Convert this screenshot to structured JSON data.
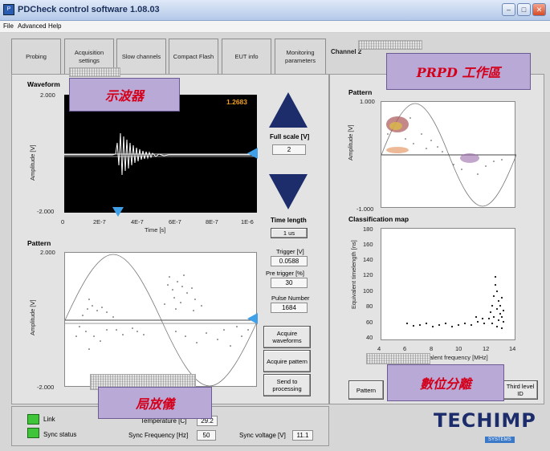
{
  "window": {
    "title": "PDCheck control software 1.08.03"
  },
  "menu": [
    "File",
    "Advanced",
    "Help"
  ],
  "tabs": [
    "Probing",
    "Acquisition settings",
    "Slow channels",
    "Compact Flash",
    "EUT info",
    "Monitoring parameters",
    "Channel 2"
  ],
  "waveform": {
    "title": "Waveform",
    "value_readout": "1.2683",
    "y_axis": {
      "label": "Amplitude [V]",
      "top": "2.000",
      "bottom": "-2.000"
    },
    "x_axis": {
      "label": "Time [s]",
      "ticks": [
        "0",
        "2E-7",
        "4E-7",
        "6E-7",
        "8E-7",
        "1E-6"
      ]
    }
  },
  "pattern": {
    "title": "Pattern",
    "y_axis": {
      "label": "Amplitude [V]",
      "top": "2.000",
      "bottom": "-2.000"
    }
  },
  "controls": {
    "full_scale_label": "Full scale [V]",
    "full_scale_value": "2",
    "time_length_label": "Time length",
    "time_length_value": "1 us",
    "trigger_label": "Trigger [V]",
    "trigger_value": "0.0588",
    "pretrigger_label": "Pre trigger [%]",
    "pretrigger_value": "30",
    "pulse_number_label": "Pulse Number",
    "pulse_number_value": "1684",
    "acquire_waveforms": "Acquire waveforms",
    "acquire_pattern": "Acquire pattern",
    "send_to_processing": "Send to processing"
  },
  "prpd": {
    "title": "Pattern",
    "y_axis": {
      "label": "Amplitude [V]",
      "top": "1.000",
      "bottom": "-1.000"
    }
  },
  "classification": {
    "title": "Classification map",
    "y_axis": {
      "label": "Equivalent timelength [ns]",
      "ticks": [
        "180",
        "160",
        "140",
        "120",
        "100",
        "80",
        "60",
        "40"
      ]
    },
    "x_axis": {
      "label": "Equivalent frequency [MHz]",
      "ticks": [
        "4",
        "6",
        "8",
        "10",
        "12",
        "14"
      ]
    }
  },
  "right_buttons": {
    "pattern": "Pattern",
    "third": "Third level ID"
  },
  "status": {
    "link": "Link",
    "sync_status": "Sync status",
    "temperature_label": "Temperature [C]",
    "temperature_value": "29.2",
    "sync_freq_label": "Sync Frequency [Hz]",
    "sync_freq_value": "50",
    "sync_voltage_label": "Sync voltage [V]",
    "sync_voltage_value": "11.1"
  },
  "logo": {
    "brand": "TECHIMP",
    "subtitle": "SYSTEMS"
  },
  "annotations": {
    "oscilloscope": "示波器",
    "prpd_area": "PRPD 工作區",
    "digital_separation": "數位分離",
    "pd_instrument": "局放儀"
  },
  "colors": {
    "accent_arrow": "#1d2d6b",
    "marker": "#3fa0e8",
    "led_on": "#3fc43a",
    "annotation_text": "#d4001b",
    "annotation_bg": "#b9a9d6"
  }
}
